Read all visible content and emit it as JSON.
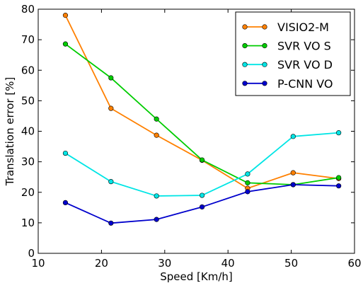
{
  "chart_data": {
    "type": "line",
    "title": "",
    "xlabel": "Speed [Km/h]",
    "ylabel": "Translation error [%]",
    "xlim": [
      10,
      60
    ],
    "ylim": [
      0,
      80
    ],
    "xticks": [
      10,
      20,
      30,
      40,
      50,
      60
    ],
    "yticks": [
      0,
      10,
      20,
      30,
      40,
      50,
      60,
      70,
      80
    ],
    "grid": false,
    "legend_position": "top-right",
    "x": [
      14.3,
      21.5,
      28.7,
      35.9,
      43.1,
      50.3,
      57.5
    ],
    "series": [
      {
        "name": "VISIO2-M",
        "color": "#ff8000",
        "values": [
          78.0,
          47.5,
          38.7,
          30.5,
          21.3,
          26.4,
          24.5
        ]
      },
      {
        "name": "SVR VO S",
        "color": "#00cc00",
        "values": [
          68.6,
          57.5,
          44.0,
          30.6,
          23.1,
          22.5,
          24.8
        ]
      },
      {
        "name": "SVR VO D",
        "color": "#00e5e5",
        "values": [
          32.8,
          23.5,
          18.8,
          19.0,
          26.0,
          38.3,
          39.5
        ]
      },
      {
        "name": "P-CNN VO",
        "color": "#0000cc",
        "values": [
          16.6,
          9.9,
          11.1,
          15.2,
          20.2,
          22.5,
          22.1
        ]
      }
    ]
  }
}
